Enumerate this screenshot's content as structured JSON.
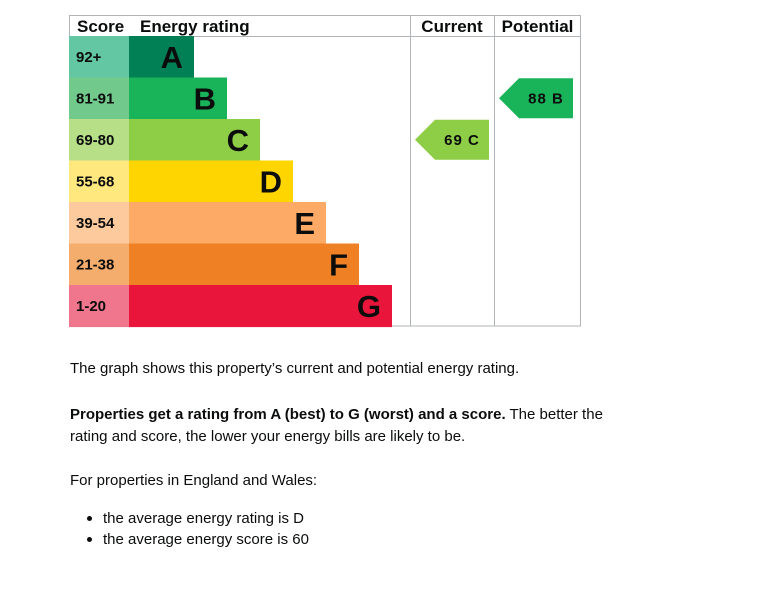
{
  "chart_data": {
    "type": "table",
    "headers": {
      "score": "Score",
      "rating": "Energy rating",
      "current": "Current",
      "potential": "Potential"
    },
    "bands": [
      {
        "letter": "A",
        "range": "92+",
        "color": "#008054",
        "score_color": "#63c7a3"
      },
      {
        "letter": "B",
        "range": "81-91",
        "color": "#19b459",
        "score_color": "#71c98c"
      },
      {
        "letter": "C",
        "range": "69-80",
        "color": "#8dce46",
        "score_color": "#b6df88"
      },
      {
        "letter": "D",
        "range": "55-68",
        "color": "#ffd500",
        "score_color": "#ffe97f"
      },
      {
        "letter": "E",
        "range": "39-54",
        "color": "#fcaa65",
        "score_color": "#fdca9e"
      },
      {
        "letter": "F",
        "range": "21-38",
        "color": "#ef8023",
        "score_color": "#f5ad6e"
      },
      {
        "letter": "G",
        "range": "1-20",
        "color": "#e9153b",
        "score_color": "#f0768d"
      }
    ],
    "current": {
      "score": 69,
      "band": "C",
      "label": "69 C",
      "color": "#8dce46"
    },
    "potential": {
      "score": 88,
      "band": "B",
      "label": "88 B",
      "color": "#19b459"
    }
  },
  "text": {
    "intro": "The graph shows this property’s current and potential energy rating.",
    "rating_bold": "Properties get a rating from A (best) to G (worst) and a score.",
    "rating_rest": " The better the rating and score, the lower your energy bills are likely to be.",
    "region": "For properties in England and Wales:",
    "bullets": [
      "the average energy rating is D",
      "the average energy score is 60"
    ]
  }
}
